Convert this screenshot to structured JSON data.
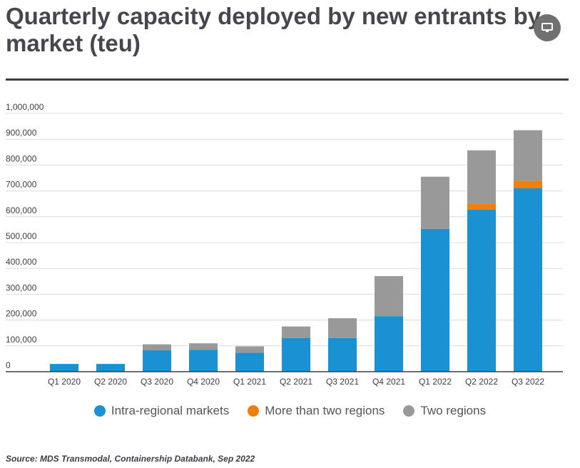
{
  "header": {
    "title": "Quarterly capacity deployed by new entrants by market (teu)",
    "display_button_icon": "monitor-icon"
  },
  "chart_data": {
    "type": "bar",
    "stacked": true,
    "title": "Quarterly capacity deployed by new entrants by market (teu)",
    "xlabel": "",
    "ylabel": "",
    "ylim": [
      0,
      1000000
    ],
    "yticks": [
      0,
      100000,
      200000,
      300000,
      400000,
      500000,
      600000,
      700000,
      800000,
      900000,
      1000000
    ],
    "ytick_labels": [
      "0",
      "100,000",
      "200,000",
      "300,000",
      "400,000",
      "500,000",
      "600,000",
      "700,000",
      "800,000",
      "900,000",
      "1,000,000"
    ],
    "grid": true,
    "legend_position": "bottom",
    "categories": [
      "Q1 2020",
      "Q2 2020",
      "Q3 2020",
      "Q4 2020",
      "Q1 2021",
      "Q2 2021",
      "Q3 2021",
      "Q4 2021",
      "Q1 2022",
      "Q2 2022",
      "Q3 2022"
    ],
    "series": [
      {
        "name": "Intra-regional markets",
        "color": "#1a91d3",
        "values": [
          30000,
          30000,
          83000,
          85000,
          73000,
          130000,
          130000,
          215000,
          553000,
          627000,
          710000
        ]
      },
      {
        "name": "More than two regions",
        "color": "#f07f0a",
        "values": [
          0,
          0,
          0,
          0,
          0,
          0,
          0,
          0,
          0,
          22000,
          30000
        ]
      },
      {
        "name": "Two regions",
        "color": "#999999",
        "values": [
          0,
          0,
          23000,
          25000,
          25000,
          45000,
          77000,
          155000,
          202000,
          208000,
          195000
        ]
      }
    ]
  },
  "source": "Source: MDS Transmodal, Containership Databank, Sep 2022"
}
